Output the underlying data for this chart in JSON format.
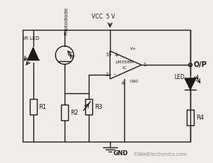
{
  "bg_color": "#f0ede8",
  "line_color": "#1a1a1a",
  "title": "",
  "watermark": "©WatElectronics.com",
  "vcc_label": "VCC  5 V",
  "gnd_label": "GND",
  "op_label": "O/P",
  "ir_led_label": "IR LED",
  "photodiode_label": "Photodiode",
  "led_label": "LED",
  "ic_label": "LM358M",
  "ic_sublabel": "IC",
  "r1_label": "R1",
  "r2_label": "R2",
  "r3_label": "R3",
  "r4_label": "R4",
  "plus_label": "+",
  "minus_label": "-",
  "pin3_label": "3",
  "pin2_label": "2",
  "pin1_label": "1",
  "pin4_label": "4",
  "vplus_label": "V+",
  "gnd_ic_label": "GND"
}
